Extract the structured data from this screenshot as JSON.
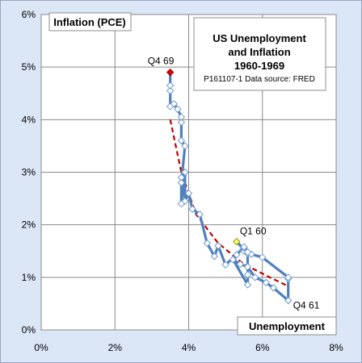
{
  "chart_data": {
    "type": "line",
    "title_lines": [
      "US Unemployment",
      "and Inflation",
      "1960-1969"
    ],
    "source_note": "P161107-1 Data source: FRED",
    "ylabel": "Inflation (PCE)",
    "xlabel": "Unemployment",
    "xlim": [
      0,
      8
    ],
    "ylim": [
      0,
      6
    ],
    "x_ticks": [
      0,
      2,
      4,
      6,
      8
    ],
    "y_ticks": [
      0,
      1,
      2,
      3,
      4,
      5,
      6
    ],
    "x_tick_labels": [
      "0%",
      "2%",
      "4%",
      "6%",
      "8%"
    ],
    "y_tick_labels": [
      "0%",
      "1%",
      "2%",
      "3%",
      "4%",
      "5%",
      "6%"
    ],
    "grid": true,
    "colors": {
      "series": "#4f81bd",
      "trend": "#c00000",
      "highlight_start": "#ffff66",
      "highlight_end": "#e00000",
      "plot_bg": "#ffffff",
      "frame_bg": "#dbe6f7"
    },
    "series": [
      {
        "x": [
          5.3,
          5.6,
          5.6,
          5.6,
          5.2,
          5.4,
          5.6,
          5.8,
          6.1,
          6.3,
          6.7,
          6.7,
          6.7,
          6.0,
          5.7,
          5.5,
          5.5,
          5.6,
          5.5,
          5.3,
          5.0,
          4.8,
          4.7,
          4.5,
          4.3,
          4.1,
          4.0,
          3.9,
          3.9,
          3.8,
          3.8,
          3.8,
          3.9,
          3.8,
          3.8,
          3.8,
          3.7,
          3.6,
          3.5,
          3.5,
          3.5,
          3.5
        ],
        "y": [
          1.68,
          1.45,
          1.05,
          0.86,
          1.34,
          1.25,
          1.2,
          1.0,
          0.9,
          0.8,
          0.56,
          0.97,
          1.0,
          1.38,
          1.44,
          1.5,
          1.56,
          1.48,
          1.58,
          1.43,
          1.24,
          1.6,
          1.4,
          1.65,
          2.2,
          2.3,
          2.6,
          2.45,
          3.0,
          2.4,
          2.9,
          2.8,
          3.5,
          3.6,
          3.95,
          4.05,
          4.2,
          4.3,
          4.25,
          4.55,
          4.65,
          4.9
        ]
      }
    ],
    "trendline": {
      "x": [
        3.5,
        3.8,
        4.2,
        4.8,
        5.5,
        6.2,
        6.7
      ],
      "y": [
        4.0,
        3.0,
        2.2,
        1.65,
        1.25,
        1.0,
        0.83
      ]
    },
    "annotations": [
      {
        "text": "Q4 69",
        "x": 3.5,
        "y": 4.9
      },
      {
        "text": "Q1 60",
        "x": 5.3,
        "y": 1.68
      },
      {
        "text": "Q4 61",
        "x": 6.7,
        "y": 0.56
      }
    ]
  }
}
